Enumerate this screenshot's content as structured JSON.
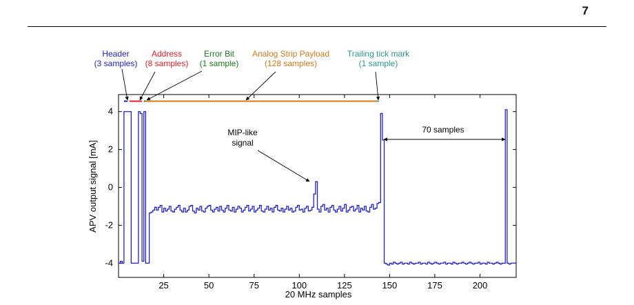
{
  "page": {
    "number": "7"
  },
  "colors": {
    "header": "#1f1fcf",
    "address": "#e8202a",
    "error_bit": "#1f7a1f",
    "payload": "#d67a1c",
    "trailing": "#2a9a8e",
    "trace": "#1f1fcf",
    "axis": "#000000"
  },
  "chart_data": {
    "type": "line",
    "xlabel": "20 MHz samples",
    "ylabel": "APV output signal [mA]",
    "xlim": [
      0,
      220
    ],
    "ylim": [
      -4.75,
      4.9
    ],
    "xticks": [
      25,
      50,
      75,
      100,
      125,
      150,
      175,
      200
    ],
    "yticks": [
      -4,
      -2,
      0,
      2,
      4
    ],
    "xtick_labels": [
      "25",
      "50",
      "75",
      "100",
      "125",
      "150",
      "175",
      "200"
    ],
    "ytick_labels": [
      "-4",
      "-2",
      "0",
      "2",
      "4"
    ],
    "segments": [
      {
        "name": "Header",
        "detail": "(3 samples)",
        "color": "#1f1fcf",
        "x_start": 3,
        "x_end": 5,
        "y": 4.55
      },
      {
        "name": "Address",
        "detail": "(8 samples)",
        "color": "#e8202a",
        "x_start": 6,
        "x_end": 13,
        "y": 4.55
      },
      {
        "name": "Error Bit",
        "detail": "(1 sample)",
        "color": "#1f7a1f",
        "x_start": 14,
        "x_end": 15,
        "y": 4.55
      },
      {
        "name": "Analog Strip Payload",
        "detail": "(128 samples)",
        "color": "#d67a1c",
        "x_start": 15,
        "x_end": 143,
        "y": 4.55
      },
      {
        "name": "Trailing tick mark",
        "detail": "(1 sample)",
        "color": "#2a9a8e",
        "x_start": 143,
        "x_end": 144,
        "y": 4.55
      }
    ],
    "annotations": {
      "mip_line1": "MIP-like",
      "mip_line2": "signal",
      "gap_label": "70 samples"
    },
    "trace": {
      "x": [
        0,
        1,
        2,
        3,
        4,
        5,
        6,
        7,
        8,
        9,
        10,
        11,
        12,
        13,
        14,
        15,
        16,
        17,
        18,
        19,
        20,
        21,
        22,
        23,
        24,
        25,
        26,
        27,
        28,
        29,
        30,
        31,
        32,
        33,
        34,
        35,
        36,
        37,
        38,
        39,
        40,
        41,
        42,
        43,
        44,
        45,
        46,
        47,
        48,
        49,
        50,
        51,
        52,
        53,
        54,
        55,
        56,
        57,
        58,
        59,
        60,
        61,
        62,
        63,
        64,
        65,
        66,
        67,
        68,
        69,
        70,
        71,
        72,
        73,
        74,
        75,
        76,
        77,
        78,
        79,
        80,
        81,
        82,
        83,
        84,
        85,
        86,
        87,
        88,
        89,
        90,
        91,
        92,
        93,
        94,
        95,
        96,
        97,
        98,
        99,
        100,
        101,
        102,
        103,
        104,
        105,
        106,
        107,
        108,
        109,
        110,
        111,
        112,
        113,
        114,
        115,
        116,
        117,
        118,
        119,
        120,
        121,
        122,
        123,
        124,
        125,
        126,
        127,
        128,
        129,
        130,
        131,
        132,
        133,
        134,
        135,
        136,
        137,
        138,
        139,
        140,
        141,
        142,
        143,
        144,
        145,
        146,
        147,
        148,
        149,
        150,
        151,
        152,
        153,
        154,
        155,
        156,
        157,
        158,
        159,
        160,
        161,
        162,
        163,
        164,
        165,
        166,
        167,
        168,
        169,
        170,
        171,
        172,
        173,
        174,
        175,
        176,
        177,
        178,
        179,
        180,
        181,
        182,
        183,
        184,
        185,
        186,
        187,
        188,
        189,
        190,
        191,
        192,
        193,
        194,
        195,
        196,
        197,
        198,
        199,
        200,
        201,
        202,
        203,
        204,
        205,
        206,
        207,
        208,
        209,
        210,
        211,
        212,
        213,
        214,
        215,
        216,
        217,
        218,
        219,
        220
      ],
      "y": [
        -4.0,
        -3.9,
        -4.0,
        4.0,
        4.0,
        4.0,
        4.0,
        -4.0,
        -4.0,
        -4.0,
        -4.0,
        4.0,
        3.9,
        -3.9,
        4.0,
        -4.0,
        -4.0,
        -1.35,
        -1.3,
        -1.2,
        -1.05,
        -1.2,
        -1.05,
        -0.95,
        -1.3,
        -1.1,
        -1.25,
        -1.15,
        -1.0,
        -1.25,
        -1.3,
        -1.15,
        -1.05,
        -0.95,
        -1.2,
        -1.3,
        -1.1,
        -1.3,
        -1.2,
        -1.0,
        -0.95,
        -1.25,
        -1.35,
        -1.1,
        -1.2,
        -1.0,
        -1.25,
        -1.3,
        -1.1,
        -1.0,
        -0.95,
        -1.2,
        -1.3,
        -1.15,
        -1.05,
        -1.25,
        -1.0,
        -1.2,
        -1.3,
        -1.1,
        -0.95,
        -1.2,
        -1.25,
        -1.05,
        -1.3,
        -1.15,
        -1.0,
        -1.1,
        -1.3,
        -1.2,
        -1.05,
        -0.95,
        -1.25,
        -1.15,
        -1.0,
        -1.3,
        -1.2,
        -1.1,
        -0.95,
        -1.25,
        -1.3,
        -1.15,
        -1.0,
        -1.2,
        -1.1,
        -1.3,
        -1.05,
        -0.95,
        -1.2,
        -1.25,
        -1.1,
        -1.3,
        -1.15,
        -1.0,
        -1.2,
        -1.1,
        -1.3,
        -1.25,
        -1.05,
        -0.95,
        -1.2,
        -1.15,
        -1.3,
        -1.1,
        -1.0,
        -1.25,
        -1.2,
        -1.05,
        -0.35,
        0.3,
        -1.15,
        -1.3,
        -1.0,
        -0.9,
        -1.2,
        -1.1,
        -1.3,
        -1.05,
        -0.95,
        -1.2,
        -1.3,
        -1.15,
        -1.0,
        -1.25,
        -1.1,
        -0.9,
        -1.3,
        -1.2,
        -1.05,
        -1.0,
        -1.25,
        -1.15,
        -0.95,
        -1.3,
        -1.1,
        -1.2,
        -1.0,
        -1.25,
        -1.3,
        -1.05,
        -0.9,
        -1.15,
        -1.1,
        -0.85,
        -0.8,
        3.9,
        2.5,
        -4.0,
        -4.05,
        -4.1,
        -4.0,
        -4.05,
        -3.95,
        -4.0,
        -4.05,
        -4.0,
        -3.95,
        -4.05,
        -4.0,
        -4.0,
        -4.05,
        -3.95,
        -4.0,
        -4.05,
        -4.0,
        -4.0,
        -3.95,
        -4.05,
        -4.0,
        -4.0,
        -4.05,
        -3.95,
        -4.0,
        -4.05,
        -4.0,
        -3.95,
        -4.0,
        -4.05,
        -4.0,
        -4.0,
        -3.95,
        -4.05,
        -4.0,
        -4.0,
        -4.05,
        -3.95,
        -4.0,
        -4.05,
        -4.0,
        -4.0,
        -3.95,
        -4.0,
        -4.05,
        -4.0,
        -3.95,
        -4.0,
        -4.05,
        -4.0,
        -4.0,
        -3.95,
        -4.05,
        -4.0,
        -4.0,
        -4.05,
        -3.95,
        -4.0,
        -4.0,
        -4.05,
        -4.0,
        -3.95,
        -4.0,
        -4.05,
        -4.0,
        -4.0,
        4.1,
        -4.0,
        -4.05,
        -4.0,
        -4.0,
        -4.0,
        -4.0
      ]
    }
  }
}
